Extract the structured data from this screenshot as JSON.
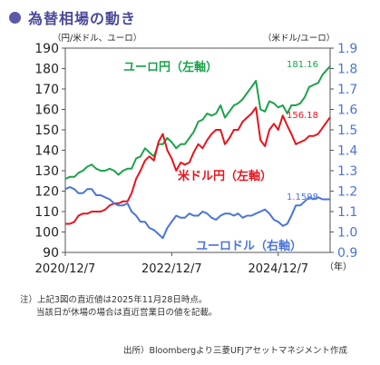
{
  "title": "為替相場の動き",
  "colors": {
    "title": "#4a4a9a",
    "green": "#1aa34a",
    "red": "#e8141c",
    "blue": "#4a74d9",
    "axis_right": "#4a74d9"
  },
  "notes": {
    "line1": "注）上記3図の直近値は2025年11月28日時点。",
    "line2": "当該日が休場の場合は直近営業日の値を記載。",
    "source": "出所）Bloombergより三菱UFJアセットマネジメント作成"
  },
  "chart_data": {
    "type": "line",
    "left_axis": {
      "label": "（円/米ドル、ユーロ）",
      "ylim": [
        90,
        190
      ],
      "ticks": [
        90,
        100,
        110,
        120,
        130,
        140,
        150,
        160,
        170,
        180,
        190
      ]
    },
    "right_axis": {
      "label": "（米ドル/ユーロ）",
      "ylim": [
        0.9,
        1.9
      ],
      "ticks": [
        "0.9",
        "1.0",
        "1.1",
        "1.2",
        "1.3",
        "1.4",
        "1.5",
        "1.6",
        "1.7",
        "1.8",
        "1.9"
      ]
    },
    "x_axis": {
      "start": "2020-12-07",
      "end": "2025-11-28",
      "tick_labels": [
        "2020/12/7",
        "2022/12/7",
        "2024/12/7"
      ],
      "unit_label": "（年）"
    },
    "grid": false,
    "series": [
      {
        "name": "ユーロ円（左軸）",
        "axis": "left",
        "color": "#1aa34a",
        "last_value_label": "181.16",
        "points": [
          [
            "2020-12-07",
            126
          ],
          [
            "2021-01-07",
            127
          ],
          [
            "2021-02-07",
            127
          ],
          [
            "2021-03-07",
            129
          ],
          [
            "2021-04-07",
            130
          ],
          [
            "2021-05-07",
            132
          ],
          [
            "2021-06-07",
            133
          ],
          [
            "2021-07-07",
            131
          ],
          [
            "2021-08-07",
            130
          ],
          [
            "2021-09-07",
            130
          ],
          [
            "2021-10-07",
            131
          ],
          [
            "2021-11-07",
            130
          ],
          [
            "2021-12-07",
            128
          ],
          [
            "2022-01-07",
            130
          ],
          [
            "2022-02-07",
            131
          ],
          [
            "2022-03-07",
            131
          ],
          [
            "2022-04-07",
            136
          ],
          [
            "2022-05-07",
            137
          ],
          [
            "2022-06-07",
            141
          ],
          [
            "2022-07-07",
            139
          ],
          [
            "2022-08-07",
            137
          ],
          [
            "2022-09-07",
            143
          ],
          [
            "2022-10-07",
            143
          ],
          [
            "2022-11-07",
            146
          ],
          [
            "2022-12-07",
            144
          ],
          [
            "2023-01-07",
            141
          ],
          [
            "2023-02-07",
            143
          ],
          [
            "2023-03-07",
            143
          ],
          [
            "2023-04-07",
            146
          ],
          [
            "2023-05-07",
            149
          ],
          [
            "2023-06-07",
            154
          ],
          [
            "2023-07-07",
            155
          ],
          [
            "2023-08-07",
            158
          ],
          [
            "2023-09-07",
            157
          ],
          [
            "2023-10-07",
            158
          ],
          [
            "2023-11-07",
            162
          ],
          [
            "2023-12-07",
            156
          ],
          [
            "2024-01-07",
            159
          ],
          [
            "2024-02-07",
            162
          ],
          [
            "2024-03-07",
            163
          ],
          [
            "2024-04-07",
            165
          ],
          [
            "2024-05-07",
            168
          ],
          [
            "2024-06-07",
            171
          ],
          [
            "2024-07-07",
            174
          ],
          [
            "2024-08-07",
            160
          ],
          [
            "2024-09-07",
            159
          ],
          [
            "2024-10-07",
            164
          ],
          [
            "2024-11-07",
            163
          ],
          [
            "2024-12-07",
            161
          ],
          [
            "2025-01-07",
            162
          ],
          [
            "2025-02-07",
            158
          ],
          [
            "2025-03-07",
            162
          ],
          [
            "2025-04-07",
            162
          ],
          [
            "2025-05-07",
            163
          ],
          [
            "2025-06-07",
            166
          ],
          [
            "2025-07-07",
            171
          ],
          [
            "2025-08-07",
            172
          ],
          [
            "2025-09-07",
            173
          ],
          [
            "2025-10-07",
            177
          ],
          [
            "2025-11-28",
            181.16
          ]
        ]
      },
      {
        "name": "米ドル円（左軸）",
        "axis": "left",
        "color": "#e8141c",
        "last_value_label": "156.18",
        "points": [
          [
            "2020-12-07",
            104
          ],
          [
            "2021-01-07",
            104
          ],
          [
            "2021-02-07",
            105
          ],
          [
            "2021-03-07",
            108
          ],
          [
            "2021-04-07",
            109
          ],
          [
            "2021-05-07",
            109
          ],
          [
            "2021-06-07",
            110
          ],
          [
            "2021-07-07",
            110
          ],
          [
            "2021-08-07",
            110
          ],
          [
            "2021-09-07",
            111
          ],
          [
            "2021-10-07",
            113
          ],
          [
            "2021-11-07",
            114
          ],
          [
            "2021-12-07",
            114
          ],
          [
            "2022-01-07",
            115
          ],
          [
            "2022-02-07",
            115
          ],
          [
            "2022-03-07",
            119
          ],
          [
            "2022-04-07",
            126
          ],
          [
            "2022-05-07",
            130
          ],
          [
            "2022-06-07",
            135
          ],
          [
            "2022-07-07",
            137
          ],
          [
            "2022-08-07",
            135
          ],
          [
            "2022-09-07",
            144
          ],
          [
            "2022-10-07",
            148
          ],
          [
            "2022-11-07",
            140
          ],
          [
            "2022-12-07",
            136
          ],
          [
            "2023-01-07",
            130
          ],
          [
            "2023-02-07",
            134
          ],
          [
            "2023-03-07",
            133
          ],
          [
            "2023-04-07",
            134
          ],
          [
            "2023-05-07",
            139
          ],
          [
            "2023-06-07",
            143
          ],
          [
            "2023-07-07",
            141
          ],
          [
            "2023-08-07",
            145
          ],
          [
            "2023-09-07",
            148
          ],
          [
            "2023-10-07",
            150
          ],
          [
            "2023-11-07",
            150
          ],
          [
            "2023-12-07",
            143
          ],
          [
            "2024-01-07",
            146
          ],
          [
            "2024-02-07",
            150
          ],
          [
            "2024-03-07",
            150
          ],
          [
            "2024-04-07",
            154
          ],
          [
            "2024-05-07",
            156
          ],
          [
            "2024-06-07",
            158
          ],
          [
            "2024-07-07",
            161
          ],
          [
            "2024-08-07",
            145
          ],
          [
            "2024-09-07",
            142
          ],
          [
            "2024-10-07",
            150
          ],
          [
            "2024-11-07",
            153
          ],
          [
            "2024-12-07",
            150
          ],
          [
            "2025-01-07",
            157
          ],
          [
            "2025-02-07",
            152
          ],
          [
            "2025-03-07",
            148
          ],
          [
            "2025-04-07",
            143
          ],
          [
            "2025-05-07",
            144
          ],
          [
            "2025-06-07",
            145
          ],
          [
            "2025-07-07",
            147
          ],
          [
            "2025-08-07",
            147
          ],
          [
            "2025-09-07",
            148
          ],
          [
            "2025-10-07",
            151
          ],
          [
            "2025-11-28",
            156.18
          ]
        ]
      },
      {
        "name": "ユーロドル（右軸）",
        "axis": "right",
        "color": "#4a74d9",
        "last_value_label": "1.1598",
        "points": [
          [
            "2020-12-07",
            1.21
          ],
          [
            "2021-01-07",
            1.22
          ],
          [
            "2021-02-07",
            1.21
          ],
          [
            "2021-03-07",
            1.19
          ],
          [
            "2021-04-07",
            1.19
          ],
          [
            "2021-05-07",
            1.21
          ],
          [
            "2021-06-07",
            1.21
          ],
          [
            "2021-07-07",
            1.18
          ],
          [
            "2021-08-07",
            1.18
          ],
          [
            "2021-09-07",
            1.17
          ],
          [
            "2021-10-07",
            1.16
          ],
          [
            "2021-11-07",
            1.14
          ],
          [
            "2021-12-07",
            1.13
          ],
          [
            "2022-01-07",
            1.13
          ],
          [
            "2022-02-07",
            1.14
          ],
          [
            "2022-03-07",
            1.1
          ],
          [
            "2022-04-07",
            1.08
          ],
          [
            "2022-05-07",
            1.05
          ],
          [
            "2022-06-07",
            1.05
          ],
          [
            "2022-07-07",
            1.02
          ],
          [
            "2022-08-07",
            1.01
          ],
          [
            "2022-09-07",
            0.99
          ],
          [
            "2022-10-07",
            0.97
          ],
          [
            "2022-11-07",
            1.02
          ],
          [
            "2022-12-07",
            1.05
          ],
          [
            "2023-01-07",
            1.08
          ],
          [
            "2023-02-07",
            1.07
          ],
          [
            "2023-03-07",
            1.07
          ],
          [
            "2023-04-07",
            1.09
          ],
          [
            "2023-05-07",
            1.08
          ],
          [
            "2023-06-07",
            1.08
          ],
          [
            "2023-07-07",
            1.1
          ],
          [
            "2023-08-07",
            1.09
          ],
          [
            "2023-09-07",
            1.07
          ],
          [
            "2023-10-07",
            1.06
          ],
          [
            "2023-11-07",
            1.08
          ],
          [
            "2023-12-07",
            1.09
          ],
          [
            "2024-01-07",
            1.09
          ],
          [
            "2024-02-07",
            1.08
          ],
          [
            "2024-03-07",
            1.09
          ],
          [
            "2024-04-07",
            1.07
          ],
          [
            "2024-05-07",
            1.08
          ],
          [
            "2024-06-07",
            1.08
          ],
          [
            "2024-07-07",
            1.09
          ],
          [
            "2024-08-07",
            1.1
          ],
          [
            "2024-09-07",
            1.11
          ],
          [
            "2024-10-07",
            1.09
          ],
          [
            "2024-11-07",
            1.06
          ],
          [
            "2024-12-07",
            1.05
          ],
          [
            "2025-01-07",
            1.03
          ],
          [
            "2025-02-07",
            1.04
          ],
          [
            "2025-03-07",
            1.08
          ],
          [
            "2025-04-07",
            1.13
          ],
          [
            "2025-05-07",
            1.13
          ],
          [
            "2025-06-07",
            1.15
          ],
          [
            "2025-07-07",
            1.17
          ],
          [
            "2025-08-07",
            1.16
          ],
          [
            "2025-09-07",
            1.17
          ],
          [
            "2025-10-07",
            1.16
          ],
          [
            "2025-11-28",
            1.1598
          ]
        ]
      }
    ]
  }
}
